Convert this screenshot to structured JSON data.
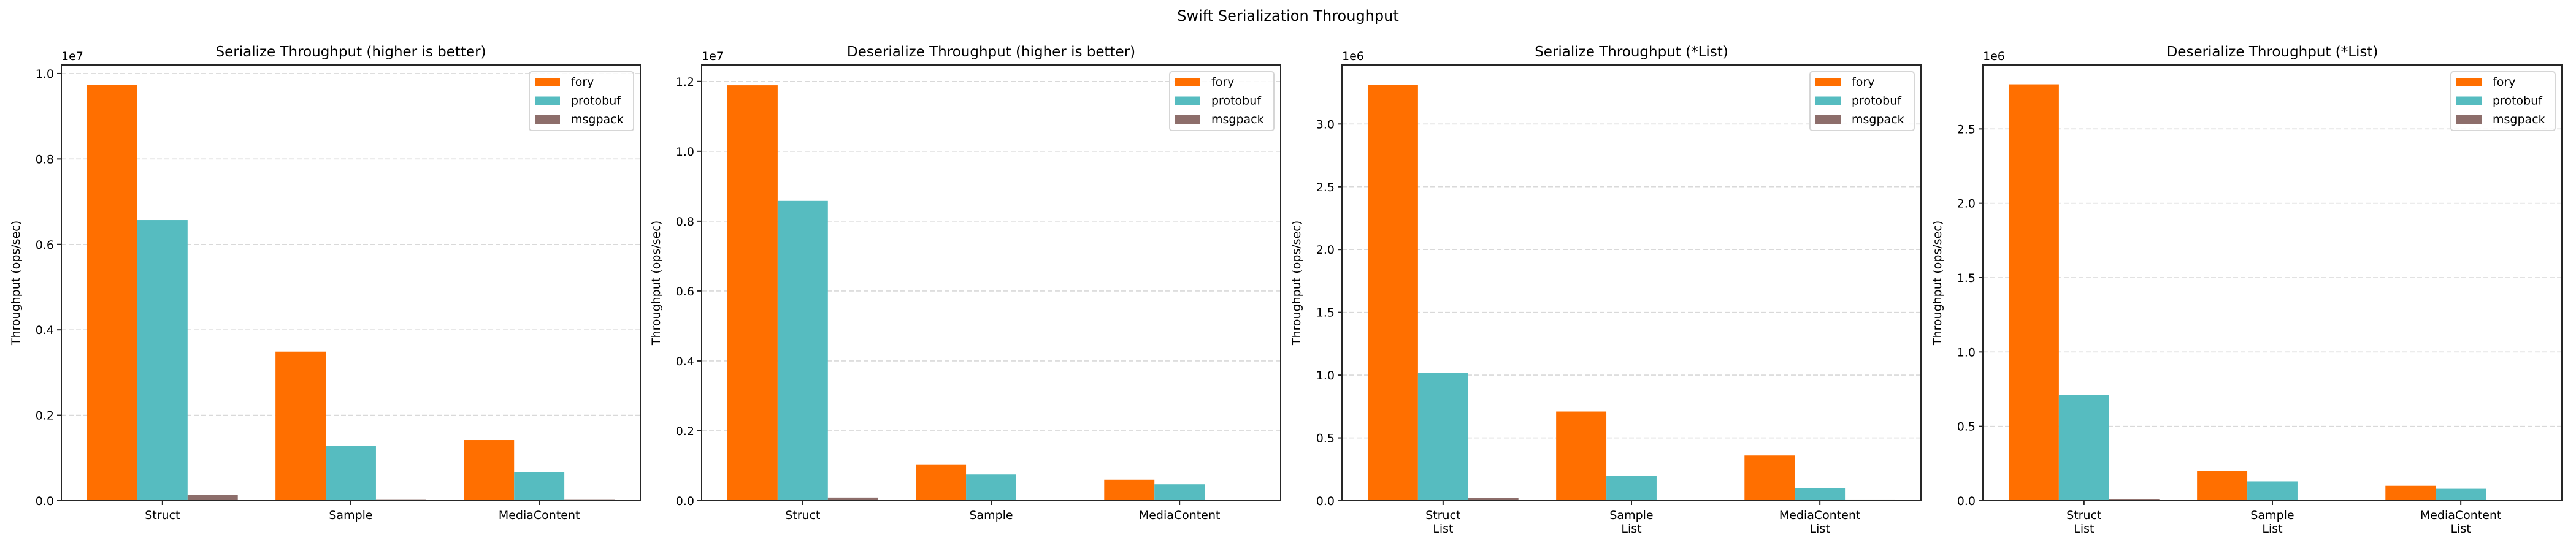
{
  "figure": {
    "suptitle": "Swift Serialization Throughput"
  },
  "colors": {
    "fory": "#ff6f00",
    "protobuf": "#56bcc0",
    "msgpack": "#8d6e6b",
    "grid": "#d9d9d9",
    "axis": "#262626"
  },
  "chart_data": [
    {
      "type": "bar",
      "title": "Serialize Throughput (higher is better)",
      "xlabel": "",
      "ylabel": "Throughput (ops/sec)",
      "y_multiplier_label": "1e7",
      "y_multiplier": 10000000,
      "ylim": [
        0,
        10200000
      ],
      "yticks": [
        0,
        2000000,
        4000000,
        6000000,
        8000000,
        10000000
      ],
      "ytick_labels": [
        "0.0",
        "0.2",
        "0.4",
        "0.6",
        "0.8",
        "1.0"
      ],
      "grid": "y, dashed",
      "legend_position": "top-right",
      "categories": [
        [
          "Struct"
        ],
        [
          "Sample"
        ],
        [
          "MediaContent"
        ]
      ],
      "series": [
        {
          "name": "fory",
          "values": [
            9730000,
            3490000,
            1420000
          ]
        },
        {
          "name": "protobuf",
          "values": [
            6570000,
            1280000,
            670000
          ]
        },
        {
          "name": "msgpack",
          "values": [
            130000,
            20000,
            20000
          ]
        }
      ]
    },
    {
      "type": "bar",
      "title": "Deserialize Throughput (higher is better)",
      "xlabel": "",
      "ylabel": "Throughput (ops/sec)",
      "y_multiplier_label": "1e7",
      "y_multiplier": 10000000,
      "ylim": [
        0,
        12470000
      ],
      "yticks": [
        0,
        2000000,
        4000000,
        6000000,
        8000000,
        10000000,
        12000000
      ],
      "ytick_labels": [
        "0.0",
        "0.2",
        "0.4",
        "0.6",
        "0.8",
        "1.0",
        "1.2"
      ],
      "grid": "y, dashed",
      "legend_position": "top-right",
      "categories": [
        [
          "Struct"
        ],
        [
          "Sample"
        ],
        [
          "MediaContent"
        ]
      ],
      "series": [
        {
          "name": "fory",
          "values": [
            11890000,
            1040000,
            600000
          ]
        },
        {
          "name": "protobuf",
          "values": [
            8580000,
            750000,
            470000
          ]
        },
        {
          "name": "msgpack",
          "values": [
            90000,
            10000,
            10000
          ]
        }
      ]
    },
    {
      "type": "bar",
      "title": "Serialize Throughput (*List)",
      "xlabel": "",
      "ylabel": "Throughput (ops/sec)",
      "y_multiplier_label": "1e6",
      "y_multiplier": 1000000,
      "ylim": [
        0,
        3470000
      ],
      "yticks": [
        0,
        500000,
        1000000,
        1500000,
        2000000,
        2500000,
        3000000
      ],
      "ytick_labels": [
        "0.0",
        "0.5",
        "1.0",
        "1.5",
        "2.0",
        "2.5",
        "3.0"
      ],
      "grid": "y, dashed",
      "legend_position": "top-right",
      "categories": [
        [
          "Struct",
          "List"
        ],
        [
          "Sample",
          "List"
        ],
        [
          "MediaContent",
          "List"
        ]
      ],
      "series": [
        {
          "name": "fory",
          "values": [
            3310000,
            710000,
            360000
          ]
        },
        {
          "name": "protobuf",
          "values": [
            1020000,
            200000,
            100000
          ]
        },
        {
          "name": "msgpack",
          "values": [
            20000,
            3000,
            5000
          ]
        }
      ]
    },
    {
      "type": "bar",
      "title": "Deserialize Throughput (*List)",
      "xlabel": "",
      "ylabel": "Throughput (ops/sec)",
      "y_multiplier_label": "1e6",
      "y_multiplier": 1000000,
      "ylim": [
        0,
        2930000
      ],
      "yticks": [
        0,
        500000,
        1000000,
        1500000,
        2000000,
        2500000
      ],
      "ytick_labels": [
        "0.0",
        "0.5",
        "1.0",
        "1.5",
        "2.0",
        "2.5"
      ],
      "grid": "y, dashed",
      "legend_position": "top-right",
      "categories": [
        [
          "Struct",
          "List"
        ],
        [
          "Sample",
          "List"
        ],
        [
          "MediaContent",
          "List"
        ]
      ],
      "series": [
        {
          "name": "fory",
          "values": [
            2800000,
            200000,
            100000
          ]
        },
        {
          "name": "protobuf",
          "values": [
            710000,
            130000,
            80000
          ]
        },
        {
          "name": "msgpack",
          "values": [
            8000,
            2000,
            2000
          ]
        }
      ]
    }
  ]
}
